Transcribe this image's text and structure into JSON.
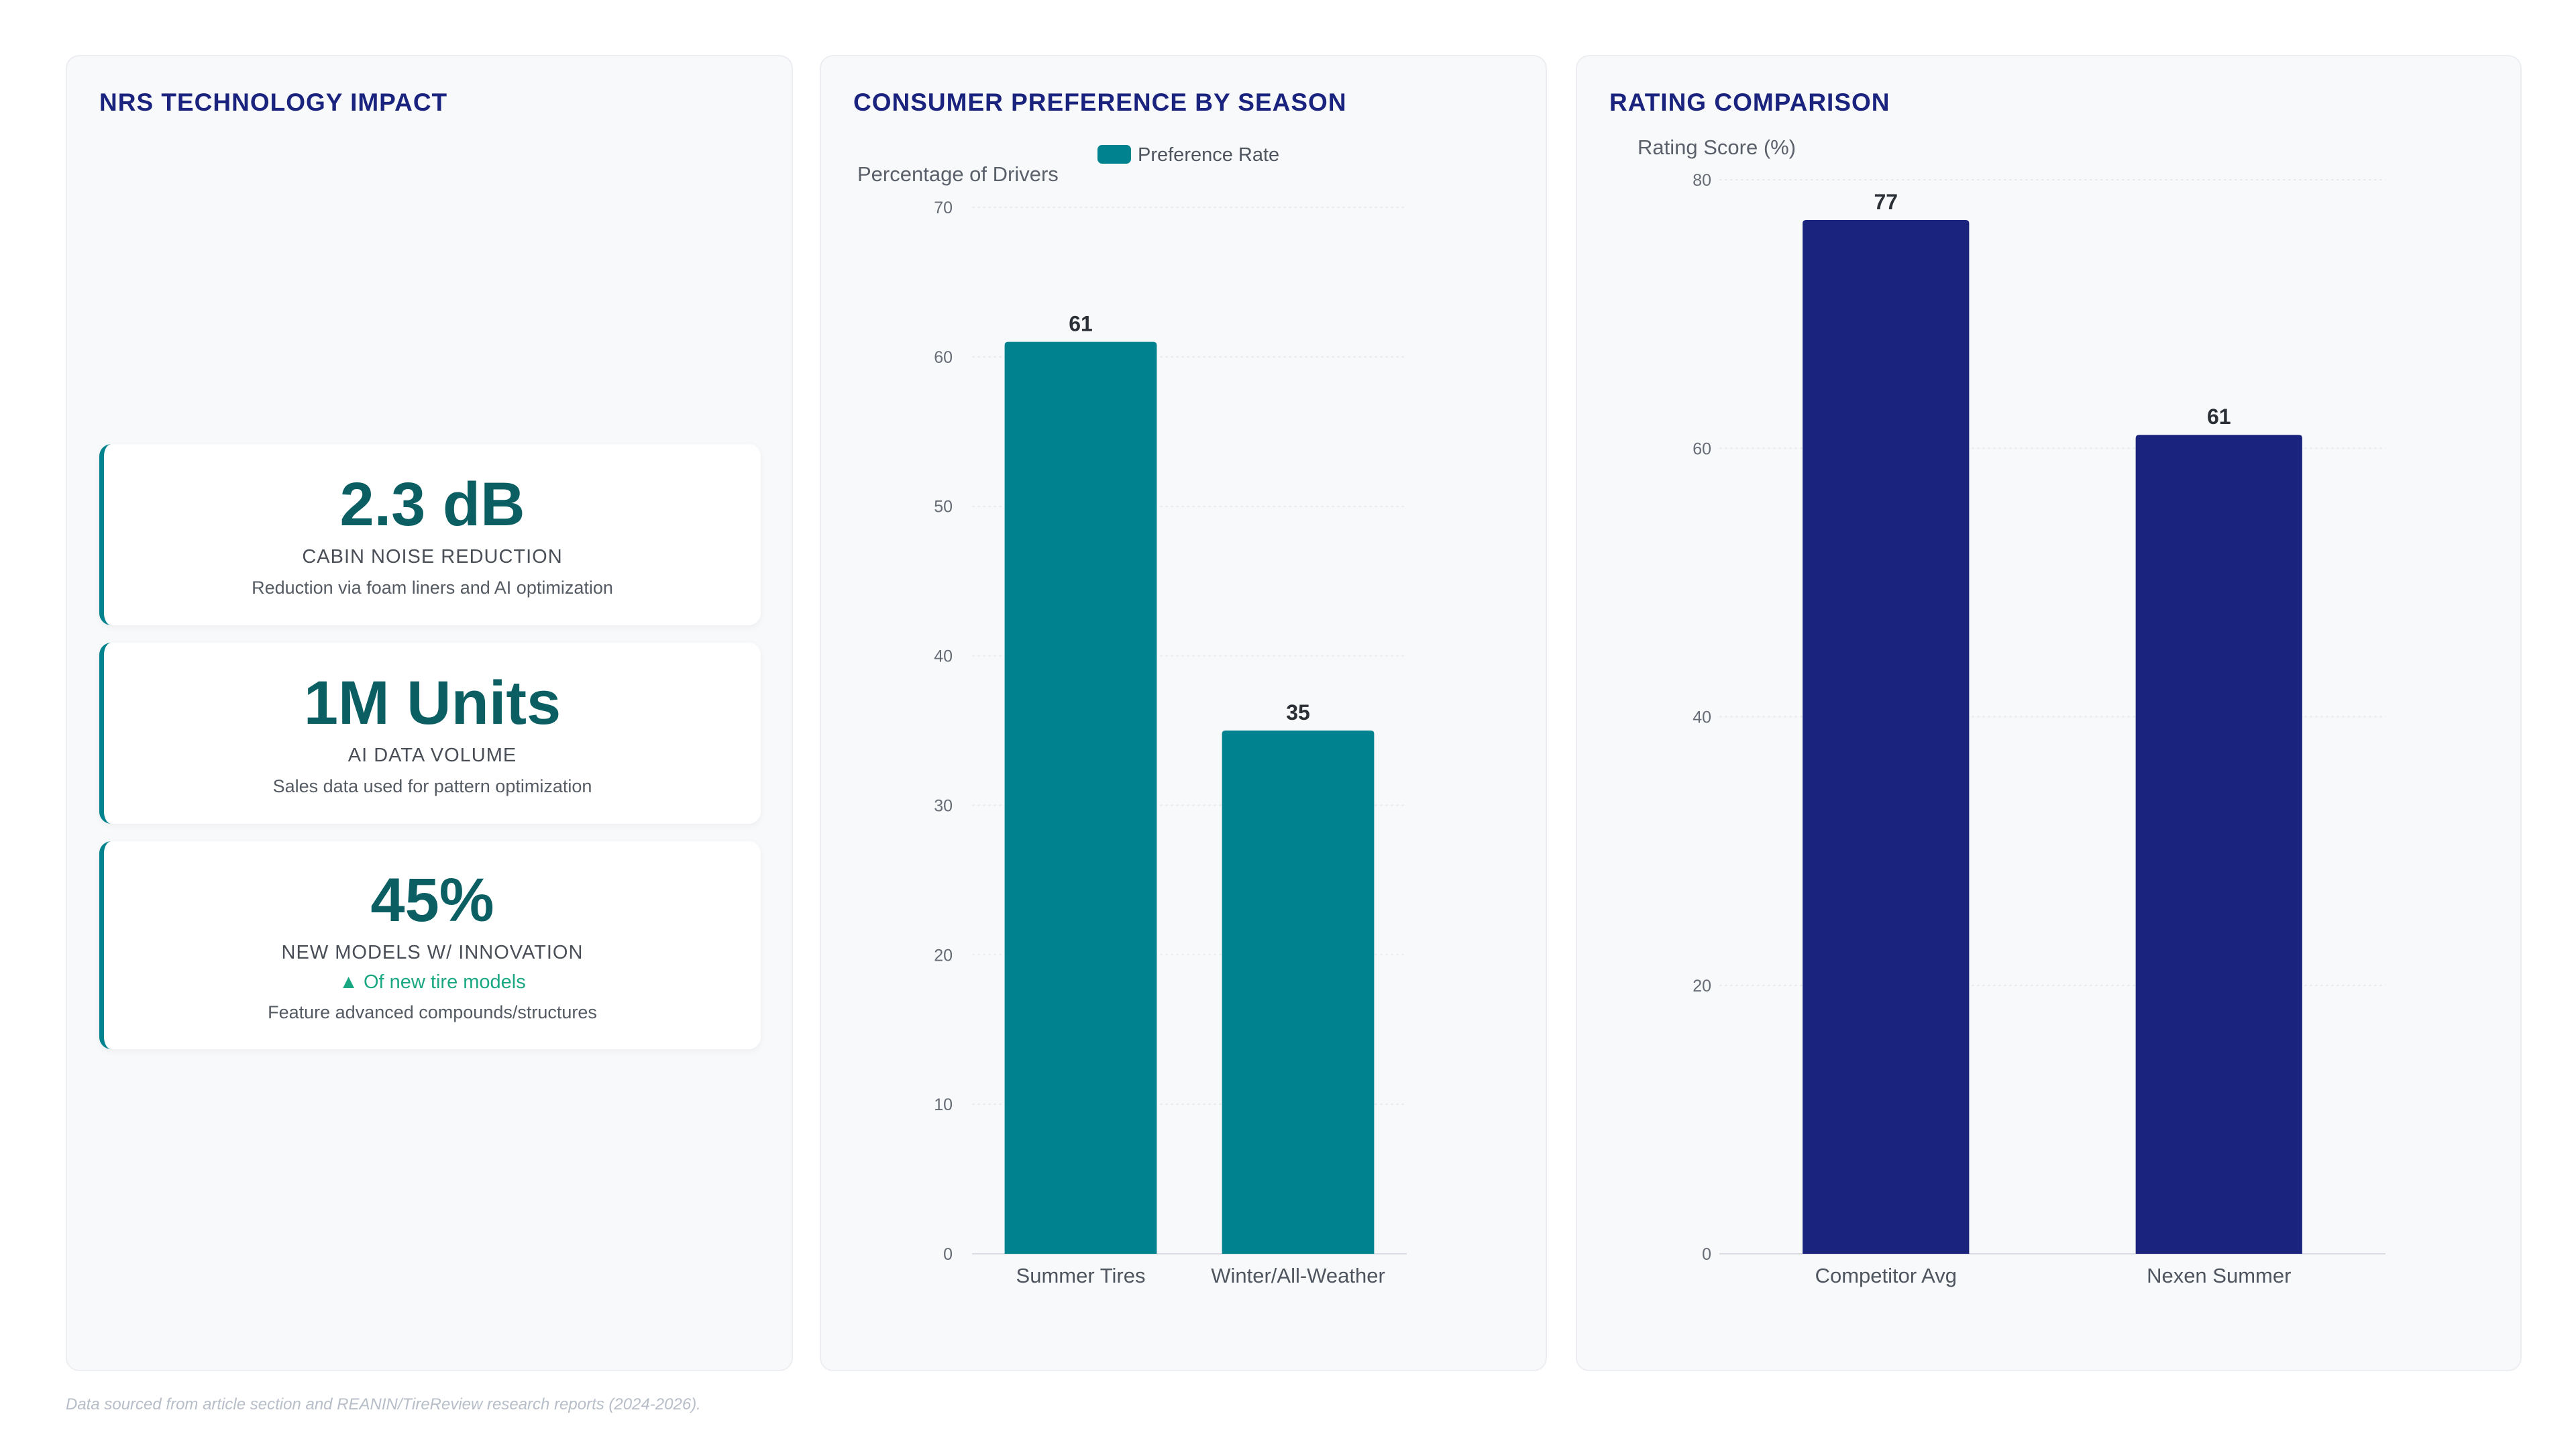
{
  "kpi_panel": {
    "title": "NRS TECHNOLOGY IMPACT",
    "cards": [
      {
        "value": "2.3 dB",
        "label": "CABIN NOISE REDUCTION",
        "description": "Reduction via foam liners and AI optimization"
      },
      {
        "value": "1M Units",
        "label": "AI DATA VOLUME",
        "description": "Sales data used for pattern optimization"
      },
      {
        "value": "45%",
        "label": "NEW MODELS W/ INNOVATION",
        "trend": "▲ Of new tire models",
        "description": "Feature advanced compounds/structures"
      }
    ]
  },
  "season_panel": {
    "title": "CONSUMER PREFERENCE BY SEASON"
  },
  "rating_panel": {
    "title": "RATING COMPARISON"
  },
  "footnote": "Data sourced from article section and REANIN/TireReview research reports (2024-2026).",
  "colors": {
    "teal": "#00838f",
    "navy": "#1a237e",
    "kpi_value": "#0b5f63",
    "trend_green": "#19a882"
  },
  "chart_data": [
    {
      "type": "bar",
      "title": "CONSUMER PREFERENCE BY SEASON",
      "categories": [
        "Summer Tires",
        "Winter/All-Weather"
      ],
      "series": [
        {
          "name": "Preference Rate",
          "values": [
            61,
            35
          ],
          "color": "#00838f"
        }
      ],
      "ylabel": "Percentage of Drivers",
      "xlabel": "",
      "ylim": [
        0,
        70
      ],
      "yticks": [
        0,
        10,
        20,
        30,
        40,
        50,
        60,
        70
      ],
      "grid": true,
      "legend": "top-center",
      "data_labels": true
    },
    {
      "type": "bar",
      "title": "RATING COMPARISON",
      "categories": [
        "Competitor Avg",
        "Nexen Summer"
      ],
      "series": [
        {
          "values": [
            77,
            61
          ],
          "color": "#1a237e"
        }
      ],
      "ylabel": "Rating Score (%)",
      "xlabel": "",
      "ylim": [
        0,
        80
      ],
      "yticks": [
        0,
        20,
        40,
        60,
        80
      ],
      "grid": true,
      "legend": "none",
      "data_labels": true
    }
  ]
}
